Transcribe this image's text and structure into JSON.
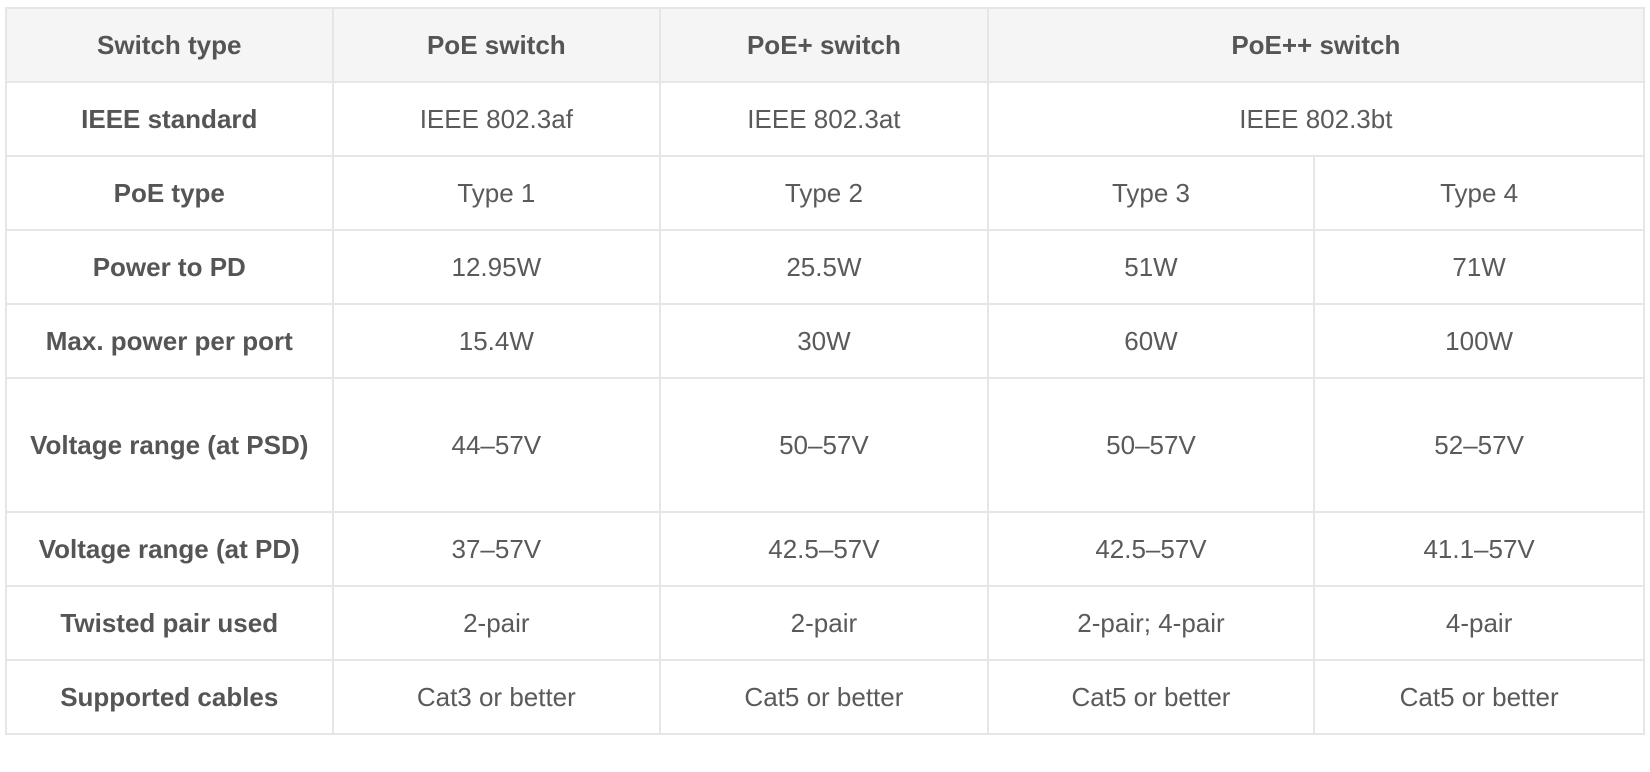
{
  "header": {
    "switch_type": "Switch type",
    "poe_switch": "PoE switch",
    "poe_plus_switch": "PoE+ switch",
    "poe_plus_plus_switch": "PoE++ switch"
  },
  "rows": {
    "ieee": {
      "label": "IEEE standard",
      "poe": "IEEE 802.3af",
      "poe_plus": "IEEE 802.3at",
      "poe_plus_plus": "IEEE 802.3bt"
    },
    "poe_type": {
      "label": "PoE type",
      "values": [
        "Type 1",
        "Type 2",
        "Type 3",
        "Type 4"
      ]
    },
    "power_to_pd": {
      "label": "Power to PD",
      "values": [
        "12.95W",
        "25.5W",
        "51W",
        "71W"
      ]
    },
    "max_power": {
      "label": "Max. power per port",
      "values": [
        "15.4W",
        "30W",
        "60W",
        "100W"
      ]
    },
    "voltage_psd": {
      "label": "Voltage range (at PSD)",
      "values": [
        "44–57V",
        "50–57V",
        "50–57V",
        "52–57V"
      ]
    },
    "voltage_pd": {
      "label": "Voltage range (at PD)",
      "values": [
        "37–57V",
        "42.5–57V",
        "42.5–57V",
        "41.1–57V"
      ]
    },
    "twisted_pair": {
      "label": "Twisted pair used",
      "values": [
        "2-pair",
        "2-pair",
        "2-pair; 4-pair",
        "4-pair"
      ]
    },
    "cables": {
      "label": "Supported cables",
      "values": [
        "Cat3 or better",
        "Cat5 or better",
        "Cat5 or better",
        "Cat5 or better"
      ]
    }
  }
}
